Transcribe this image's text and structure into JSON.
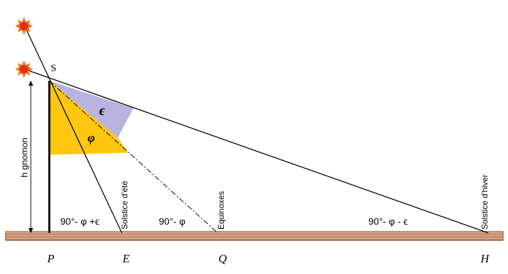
{
  "points": {
    "S": "S",
    "P": "P",
    "E": "E",
    "Q": "Q",
    "H": "H"
  },
  "angles": {
    "epsilon": "ϵ",
    "phi": "φ"
  },
  "gnomon_label": "h gnomon",
  "shadow_labels": [
    "Solstice d'été",
    "Equinoxes",
    "Solstice d'hiver"
  ],
  "angle_labels": [
    "90°- φ +ϵ",
    "90°- φ",
    "90°- φ - ϵ"
  ]
}
